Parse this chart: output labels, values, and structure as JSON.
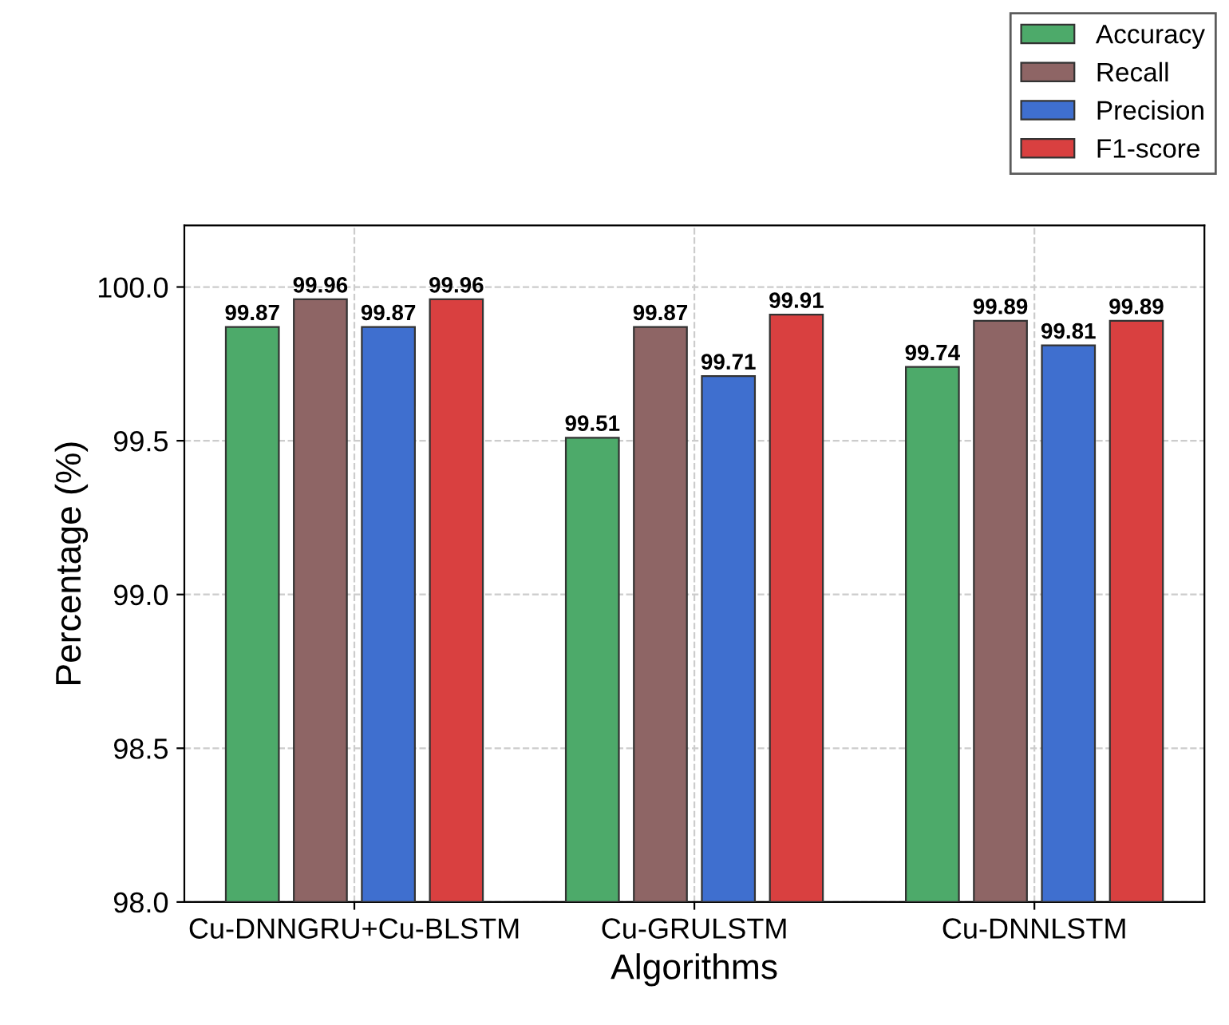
{
  "chart_data": {
    "type": "bar",
    "xlabel": "Algorithms",
    "ylabel": "Percentage (%)",
    "categories": [
      "Cu-DNNGRU+Cu-BLSTM",
      "Cu-GRULSTM",
      "Cu-DNNLSTM"
    ],
    "series": [
      {
        "name": "Accuracy",
        "color": "#4daa6a",
        "values": [
          99.87,
          99.51,
          99.74
        ]
      },
      {
        "name": "Recall",
        "color": "#8e6565",
        "values": [
          99.96,
          99.87,
          99.89
        ]
      },
      {
        "name": "Precision",
        "color": "#3f6fcf",
        "values": [
          99.87,
          99.71,
          99.81
        ]
      },
      {
        "name": "F1-score",
        "color": "#d94040",
        "values": [
          99.96,
          99.91,
          99.89
        ]
      }
    ],
    "ylim": [
      98.0,
      100.2
    ],
    "yticks": [
      {
        "value": 98.0,
        "label": "98.0"
      },
      {
        "value": 98.5,
        "label": "98.5"
      },
      {
        "value": 99.0,
        "label": "99.0"
      },
      {
        "value": 99.5,
        "label": "99.5"
      },
      {
        "value": 100.0,
        "label": "100.0"
      }
    ],
    "data_labels": true,
    "grid": true,
    "legend": "top right"
  }
}
